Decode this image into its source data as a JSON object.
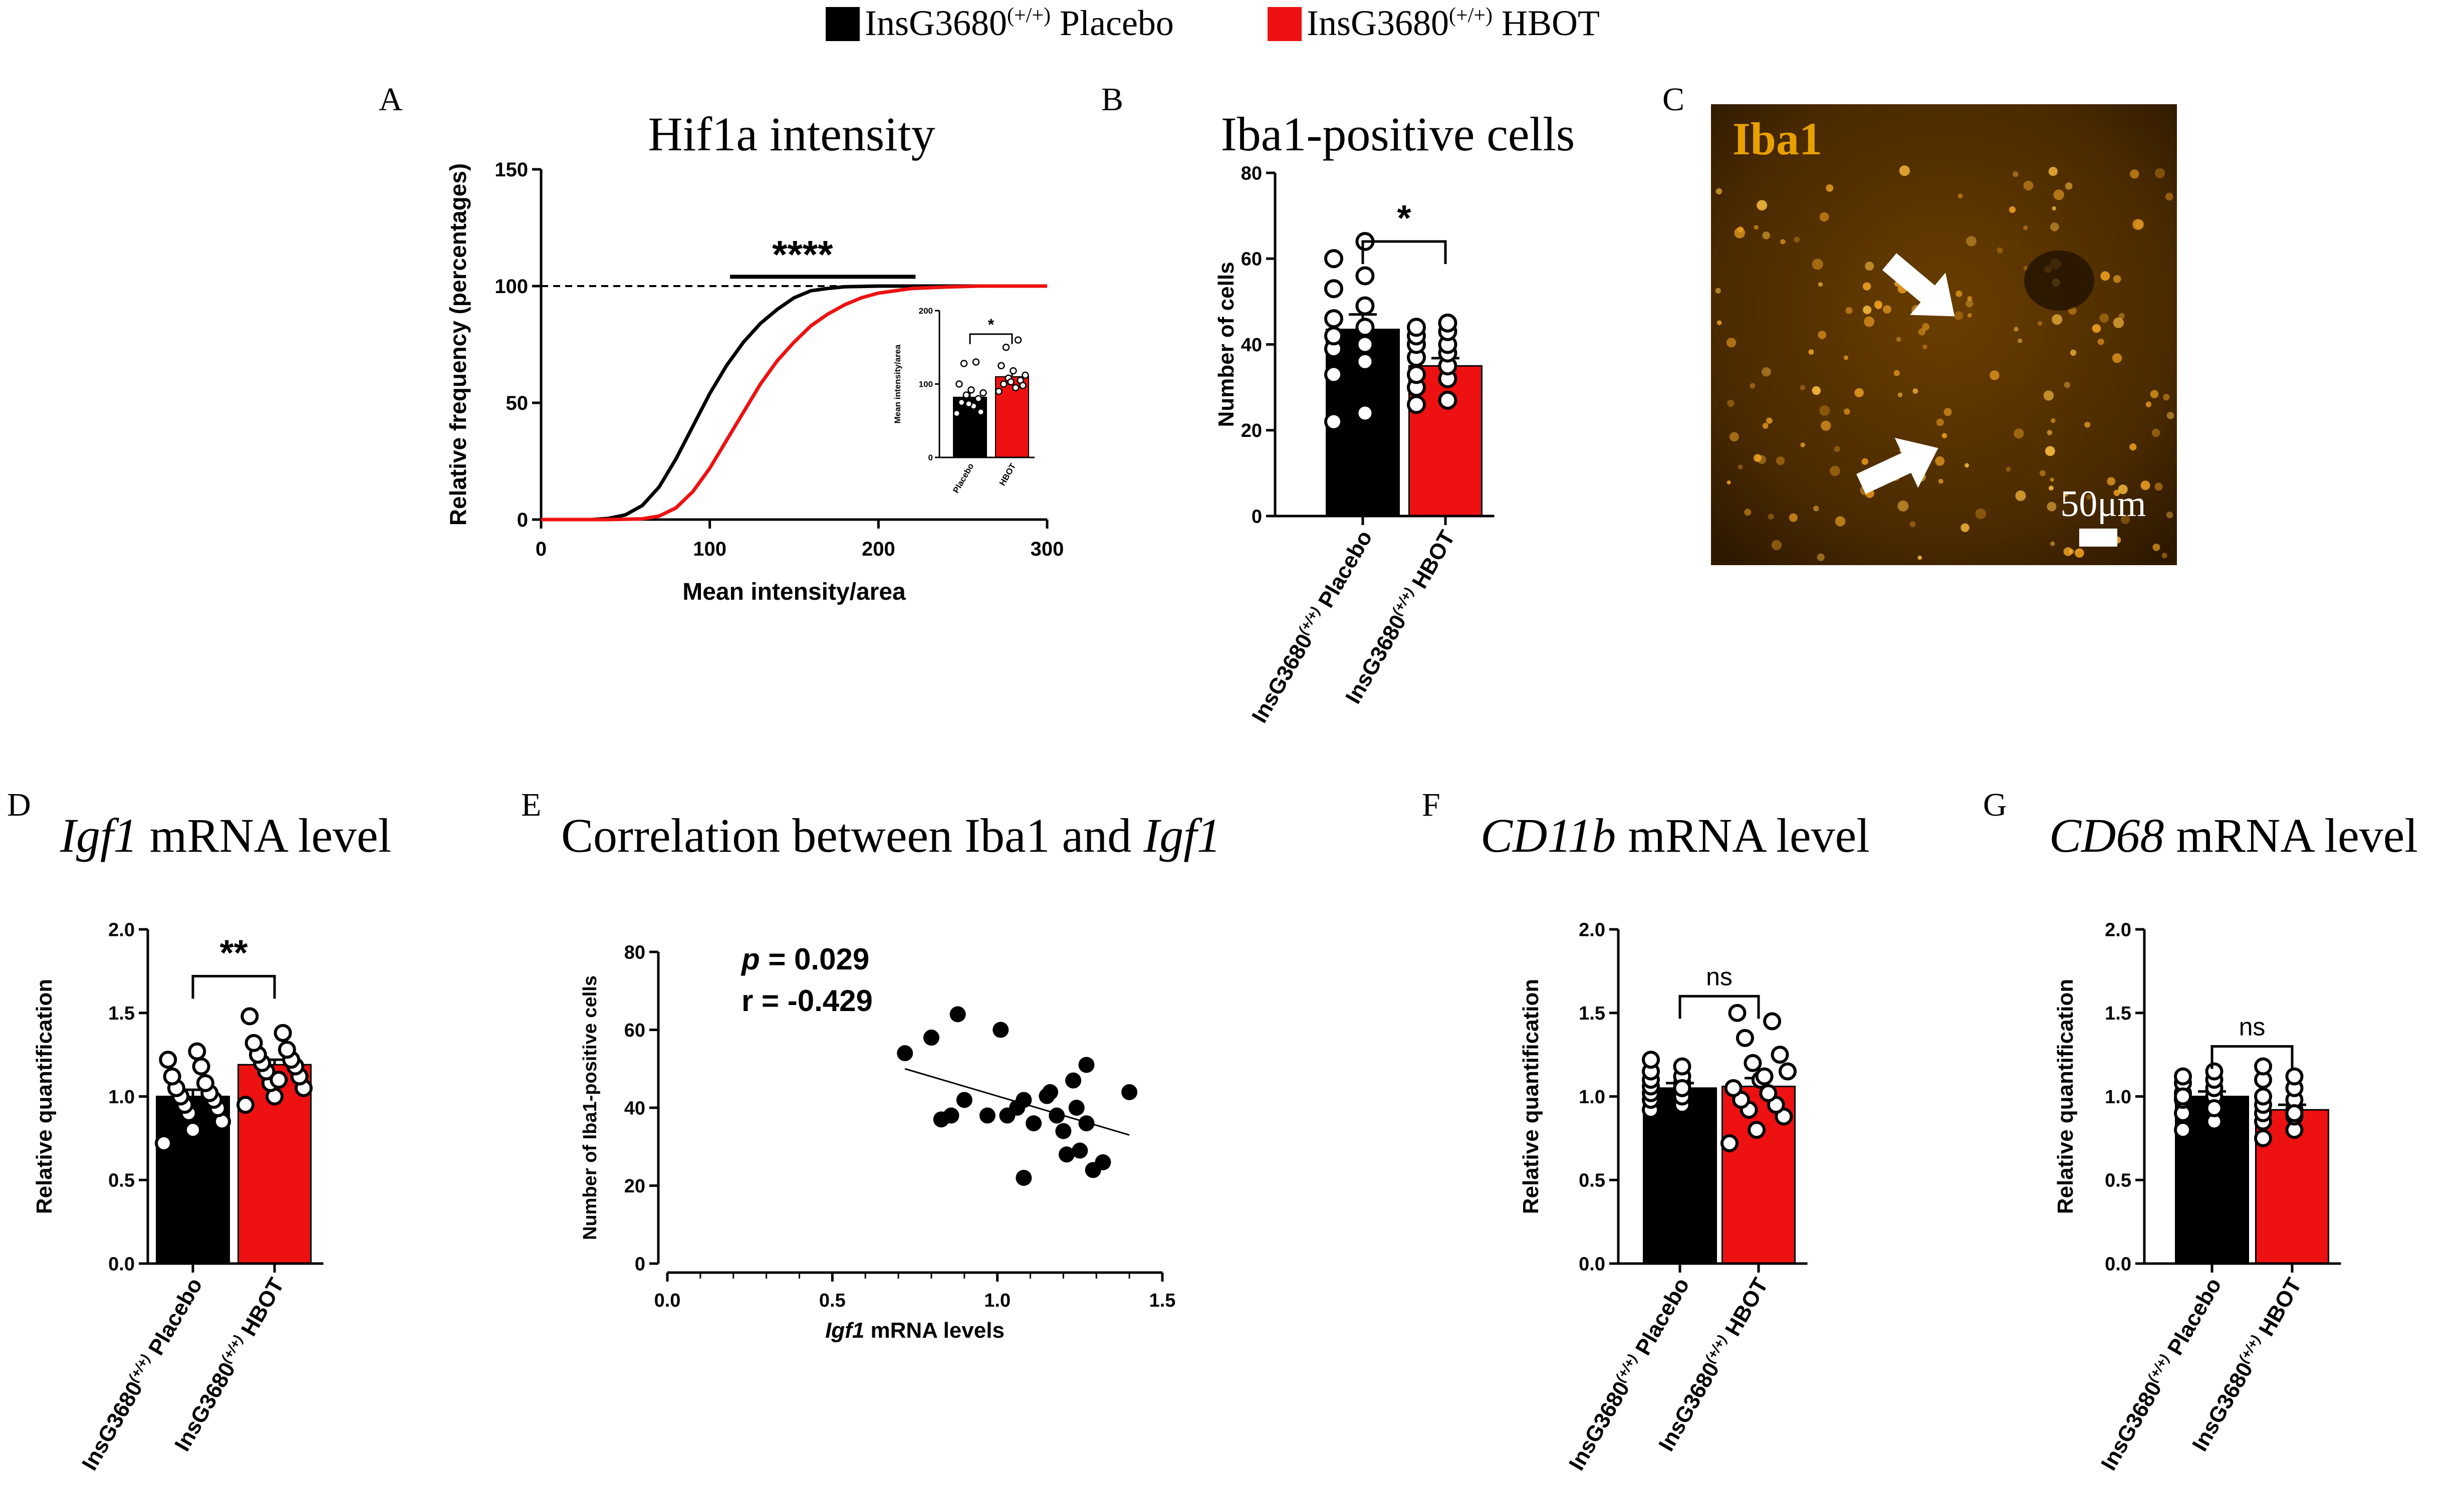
{
  "legend": {
    "placement": "top-center",
    "items": [
      {
        "base": "InsG3680",
        "sup": "(+/+)",
        "rest": " Placebo",
        "color": "#000000"
      },
      {
        "base": "InsG3680",
        "sup": "(+/+)",
        "rest": " HBOT",
        "color": "#ee1111"
      }
    ]
  },
  "colors": {
    "placebo": "#000000",
    "hbot": "#ee1111",
    "micro_bg": "#3a2200",
    "micro_text": "#e8a000"
  },
  "groups": [
    {
      "base": "InsG3680",
      "sup": "(+/+)",
      "rest": " Placebo"
    },
    {
      "base": "InsG3680",
      "sup": "(+/+)",
      "rest": " HBOT"
    }
  ],
  "panels": {
    "A": {
      "letter": "A",
      "title": "Hif1a intensity"
    },
    "B": {
      "letter": "B",
      "title": "Iba1-positive cells"
    },
    "C": {
      "letter": "C",
      "label": "Iba1",
      "scale_label": "50μm"
    },
    "D": {
      "letter": "D",
      "title_italic": "Igf1",
      "title_rest": " mRNA level"
    },
    "E": {
      "letter": "E",
      "title_main": "Correlation between Iba1 and ",
      "title_italic": "Igf1"
    },
    "F": {
      "letter": "F",
      "title_italic": "CD11b",
      "title_rest": " mRNA level"
    },
    "G": {
      "letter": "G",
      "title_italic": "CD68",
      "title_rest": " mRNA level"
    }
  },
  "chart_data": [
    {
      "panel": "A",
      "type": "line",
      "title": "Hif1a intensity",
      "xlabel": "Mean intensity/area",
      "ylabel": "Relative frequency (percentages)",
      "xlim": [
        0,
        300
      ],
      "ylim": [
        0,
        150
      ],
      "xticks": [
        0,
        100,
        200,
        300
      ],
      "yticks": [
        0,
        50,
        100,
        150
      ],
      "reference_line": 100,
      "significance": "****",
      "series": [
        {
          "name": "Placebo",
          "color": "#000000",
          "x": [
            0,
            30,
            40,
            50,
            60,
            70,
            80,
            90,
            100,
            110,
            120,
            130,
            140,
            150,
            160,
            170,
            180,
            200,
            230,
            300
          ],
          "y": [
            0,
            0,
            0.5,
            2,
            6,
            14,
            26,
            40,
            54,
            66,
            76,
            84,
            90,
            95,
            98,
            99,
            99.7,
            100,
            100,
            100
          ]
        },
        {
          "name": "HBOT",
          "color": "#ee1111",
          "x": [
            0,
            40,
            60,
            70,
            80,
            90,
            100,
            110,
            120,
            130,
            140,
            150,
            160,
            170,
            180,
            190,
            200,
            220,
            240,
            260,
            300
          ],
          "y": [
            0,
            0,
            0.3,
            1.5,
            5,
            12,
            22,
            34,
            46,
            58,
            68,
            76,
            83,
            88,
            92,
            95,
            97,
            99,
            99.6,
            100,
            100
          ]
        }
      ],
      "inset": {
        "type": "bar",
        "ylabel": "Mean intensity/area",
        "ylim": [
          0,
          200
        ],
        "yticks": [
          0,
          100,
          200
        ],
        "categories": [
          "Placebo",
          "HBOT"
        ],
        "values": [
          82,
          110
        ],
        "errors": [
          6,
          5
        ],
        "significance": "*",
        "points": [
          [
            60,
            70,
            75,
            80,
            85,
            88,
            92,
            100,
            130,
            128,
            62,
            73
          ],
          [
            90,
            95,
            100,
            105,
            108,
            112,
            118,
            125,
            160,
            150,
            98,
            103
          ]
        ]
      }
    },
    {
      "panel": "B",
      "type": "bar",
      "title": "Iba1-positive cells",
      "ylabel": "Number of cells",
      "ylim": [
        0,
        80
      ],
      "yticks": [
        0,
        20,
        40,
        60,
        80
      ],
      "categories": [
        "InsG3680(+/+) Placebo",
        "InsG3680(+/+) HBOT"
      ],
      "values": [
        43.5,
        35
      ],
      "errors": [
        3.5,
        1.8
      ],
      "significance": "*",
      "points": [
        [
          22,
          24,
          33,
          36,
          39,
          40,
          42,
          44,
          46,
          49,
          53,
          56,
          60,
          64
        ],
        [
          26,
          27,
          30,
          32,
          33,
          35,
          37,
          38,
          40,
          40,
          42,
          43,
          44,
          45
        ]
      ]
    },
    {
      "panel": "D",
      "type": "bar",
      "ylabel": "Relative quantification",
      "ylim": [
        0,
        2.0
      ],
      "yticks": [
        "0.0",
        "0.5",
        "1.0",
        "1.5",
        "2.0"
      ],
      "categories": [
        "InsG3680(+/+) Placebo",
        "InsG3680(+/+) HBOT"
      ],
      "values": [
        1.0,
        1.19
      ],
      "errors": [
        0.04,
        0.03
      ],
      "significance": "**",
      "points": [
        [
          0.72,
          0.8,
          0.85,
          0.9,
          0.93,
          0.95,
          0.98,
          1.0,
          1.02,
          1.05,
          1.08,
          1.12,
          1.18,
          1.22,
          1.27
        ],
        [
          0.95,
          1.0,
          1.05,
          1.08,
          1.12,
          1.15,
          1.18,
          1.2,
          1.22,
          1.25,
          1.28,
          1.32,
          1.38,
          1.48,
          1.1
        ]
      ]
    },
    {
      "panel": "E",
      "type": "scatter",
      "title": "Correlation between Iba1 and Igf1",
      "xlabel": "Igf1 mRNA levels",
      "ylabel": "Number of Iba1-positive cells",
      "xlim": [
        0,
        1.5
      ],
      "ylim": [
        0,
        80
      ],
      "xticks": [
        "0.0",
        "0.5",
        "1.0",
        "1.5"
      ],
      "yticks": [
        0,
        20,
        40,
        60,
        80
      ],
      "annotation": {
        "p": "p = 0.029",
        "r": "r = -0.429"
      },
      "points": [
        [
          0.72,
          54
        ],
        [
          0.8,
          58
        ],
        [
          0.83,
          37
        ],
        [
          0.86,
          38
        ],
        [
          0.88,
          64
        ],
        [
          0.9,
          42
        ],
        [
          0.97,
          38
        ],
        [
          1.01,
          60
        ],
        [
          1.03,
          38
        ],
        [
          1.06,
          40
        ],
        [
          1.08,
          42
        ],
        [
          1.08,
          22
        ],
        [
          1.11,
          36
        ],
        [
          1.15,
          43
        ],
        [
          1.16,
          44
        ],
        [
          1.18,
          38
        ],
        [
          1.2,
          34
        ],
        [
          1.21,
          28
        ],
        [
          1.23,
          47
        ],
        [
          1.24,
          40
        ],
        [
          1.25,
          29
        ],
        [
          1.27,
          51
        ],
        [
          1.27,
          36
        ],
        [
          1.29,
          24
        ],
        [
          1.32,
          26
        ],
        [
          1.4,
          44
        ]
      ],
      "trend": {
        "x": [
          0.72,
          1.4
        ],
        "y": [
          50,
          33
        ]
      }
    },
    {
      "panel": "F",
      "type": "bar",
      "ylabel": "Relative quantification",
      "ylim": [
        0,
        2.0
      ],
      "yticks": [
        "0.0",
        "0.5",
        "1.0",
        "1.5",
        "2.0"
      ],
      "categories": [
        "InsG3680(+/+) Placebo",
        "InsG3680(+/+) HBOT"
      ],
      "values": [
        1.05,
        1.06
      ],
      "errors": [
        0.03,
        0.05
      ],
      "significance": "ns",
      "points": [
        [
          0.92,
          0.95,
          0.98,
          1.0,
          1.02,
          1.05,
          1.06,
          1.08,
          1.1,
          1.12,
          1.15,
          1.18,
          1.22,
          1.05
        ],
        [
          0.72,
          0.8,
          0.88,
          0.92,
          0.95,
          0.98,
          1.02,
          1.05,
          1.1,
          1.15,
          1.2,
          1.25,
          1.35,
          1.45,
          1.5,
          1.12
        ]
      ]
    },
    {
      "panel": "G",
      "type": "bar",
      "ylabel": "Relative quantification",
      "ylim": [
        0,
        2.0
      ],
      "yticks": [
        "0.0",
        "0.5",
        "1.0",
        "1.5",
        "2.0"
      ],
      "categories": [
        "InsG3680(+/+) Placebo",
        "InsG3680(+/+) HBOT"
      ],
      "values": [
        1.0,
        0.92
      ],
      "errors": [
        0.03,
        0.03
      ],
      "significance": "ns",
      "points": [
        [
          0.8,
          0.85,
          0.9,
          0.95,
          0.98,
          1.0,
          1.02,
          1.05,
          1.08,
          1.1,
          1.12,
          1.15,
          1.0,
          0.93
        ],
        [
          0.75,
          0.8,
          0.85,
          0.88,
          0.9,
          0.92,
          0.95,
          0.98,
          1.0,
          1.05,
          1.1,
          1.12,
          1.18,
          0.9
        ]
      ]
    }
  ]
}
